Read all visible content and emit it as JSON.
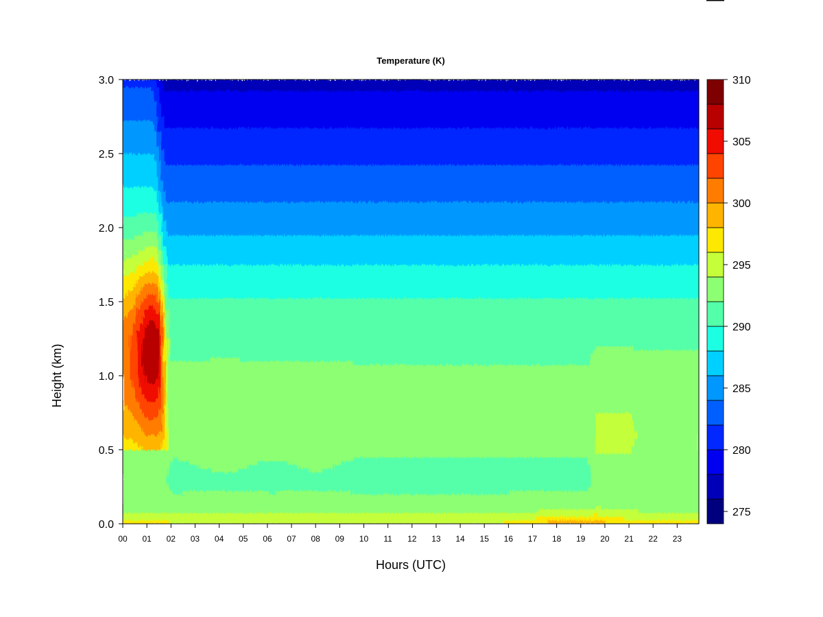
{
  "chart_data": {
    "type": "heatmap",
    "title": "Temperature (K)",
    "xlabel": "Hours (UTC)",
    "ylabel": "Height (km)",
    "xlim": [
      0,
      23.9
    ],
    "ylim": [
      0,
      3.0
    ],
    "x_ticks": [
      "00",
      "01",
      "02",
      "03",
      "04",
      "05",
      "06",
      "07",
      "08",
      "09",
      "10",
      "11",
      "12",
      "13",
      "14",
      "15",
      "16",
      "17",
      "18",
      "19",
      "20",
      "21",
      "22",
      "23"
    ],
    "y_ticks": [
      "0.0",
      "0.5",
      "1.0",
      "1.5",
      "2.0",
      "2.5",
      "3.0"
    ],
    "colorbar": {
      "min": 274,
      "max": 310,
      "step": 2,
      "tick_labels": [
        "275",
        "280",
        "285",
        "290",
        "295",
        "300",
        "305",
        "310"
      ],
      "tick_values": [
        275,
        280,
        285,
        290,
        295,
        300,
        305,
        310
      ],
      "colors": [
        "#00007f",
        "#0000b8",
        "#0000f0",
        "#0028ff",
        "#0060ff",
        "#0098ff",
        "#00d0ff",
        "#1cffe2",
        "#54ffaa",
        "#8cff72",
        "#c4ff3a",
        "#fce800",
        "#ffb400",
        "#ff7c00",
        "#ff4400",
        "#f00c00",
        "#b80000",
        "#7f0000"
      ]
    },
    "grid": false,
    "legend": "colorbar-right"
  }
}
